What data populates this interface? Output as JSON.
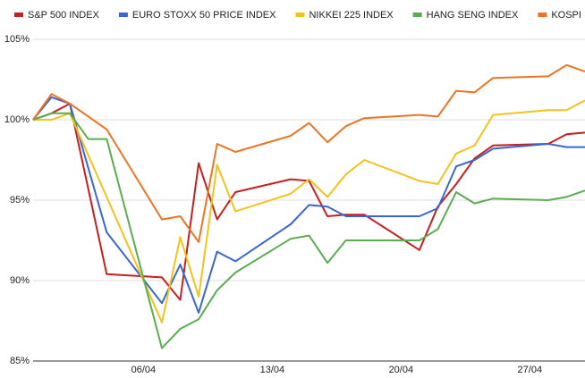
{
  "chart_data": {
    "type": "line",
    "xlim": [
      "31/03",
      "30/04"
    ],
    "xticks": [
      "06/04",
      "13/04",
      "20/04",
      "27/04"
    ],
    "ylim": [
      85,
      105
    ],
    "yticks": [
      {
        "value": 85,
        "label": "85%"
      },
      {
        "value": 90,
        "label": "90%"
      },
      {
        "value": 95,
        "label": "95%"
      },
      {
        "value": 100,
        "label": "100%"
      },
      {
        "value": 105,
        "label": "105%"
      }
    ],
    "grid": true,
    "legend": "top",
    "series": [
      {
        "name": "S&P 500 INDEX",
        "color": "#c81e1e",
        "x": [
          "31/03",
          "01/04",
          "02/04",
          "04/04",
          "07/04",
          "08/04",
          "09/04",
          "10/04",
          "11/04",
          "14/04",
          "15/04",
          "16/04",
          "17/04",
          "18/04",
          "21/04",
          "22/04",
          "23/04",
          "24/04",
          "25/04",
          "28/04",
          "29/04",
          "30/04"
        ],
        "values": [
          100,
          100.4,
          101.0,
          90.4,
          90.2,
          88.8,
          97.3,
          93.8,
          95.5,
          96.3,
          96.2,
          94.0,
          94.1,
          94.1,
          91.9,
          94.6,
          96.0,
          97.6,
          98.4,
          98.5,
          99.1,
          99.2
        ]
      },
      {
        "name": "EURO STOXX 50 PRICE INDEX",
        "color": "#3a66d0",
        "x": [
          "31/03",
          "01/04",
          "02/04",
          "04/04",
          "07/04",
          "08/04",
          "09/04",
          "10/04",
          "11/04",
          "14/04",
          "15/04",
          "16/04",
          "17/04",
          "18/04",
          "21/04",
          "22/04",
          "23/04",
          "24/04",
          "25/04",
          "28/04",
          "29/04",
          "30/04"
        ],
        "values": [
          100,
          101.4,
          101.0,
          93.0,
          88.6,
          91.0,
          88.0,
          91.8,
          91.2,
          93.5,
          94.7,
          94.6,
          94.0,
          94.0,
          94.0,
          94.5,
          97.1,
          97.5,
          98.2,
          98.5,
          98.3,
          98.3
        ]
      },
      {
        "name": "NIKKEI 225 INDEX",
        "color": "#f4c21c",
        "x": [
          "31/03",
          "01/04",
          "02/04",
          "07/04",
          "08/04",
          "09/04",
          "10/04",
          "11/04",
          "14/04",
          "15/04",
          "16/04",
          "17/04",
          "18/04",
          "21/04",
          "22/04",
          "23/04",
          "24/04",
          "25/04",
          "28/04",
          "29/04",
          "30/04"
        ],
        "values": [
          100,
          100.0,
          100.4,
          87.4,
          92.7,
          89.0,
          97.2,
          94.3,
          95.4,
          96.3,
          95.2,
          96.6,
          97.5,
          96.2,
          96.0,
          97.9,
          98.4,
          100.3,
          100.6,
          100.6,
          101.2
        ]
      },
      {
        "name": "HANG SENG INDEX",
        "color": "#5aad50",
        "x": [
          "31/03",
          "01/04",
          "02/04",
          "03/04",
          "04/04",
          "07/04",
          "08/04",
          "09/04",
          "10/04",
          "11/04",
          "14/04",
          "15/04",
          "16/04",
          "17/04",
          "18/04",
          "21/04",
          "22/04",
          "23/04",
          "24/04",
          "25/04",
          "28/04",
          "29/04",
          "30/04"
        ],
        "values": [
          100,
          100.4,
          100.4,
          98.8,
          98.8,
          85.8,
          87.0,
          87.6,
          89.4,
          90.5,
          92.6,
          92.8,
          91.1,
          92.5,
          92.5,
          92.5,
          93.2,
          95.5,
          94.8,
          95.1,
          95.0,
          95.2,
          95.6
        ]
      },
      {
        "name": "KOSPI",
        "color": "#ee7423",
        "x": [
          "31/03",
          "01/04",
          "02/04",
          "04/04",
          "07/04",
          "08/04",
          "09/04",
          "10/04",
          "11/04",
          "14/04",
          "15/04",
          "16/04",
          "17/04",
          "18/04",
          "21/04",
          "22/04",
          "23/04",
          "24/04",
          "25/04",
          "28/04",
          "29/04",
          "30/04"
        ],
        "values": [
          100,
          101.6,
          101.0,
          99.4,
          93.8,
          94.0,
          92.4,
          98.5,
          98.0,
          99.0,
          99.8,
          98.6,
          99.6,
          100.1,
          100.3,
          100.2,
          101.8,
          101.7,
          102.6,
          102.7,
          103.4,
          103.0
        ]
      }
    ]
  }
}
